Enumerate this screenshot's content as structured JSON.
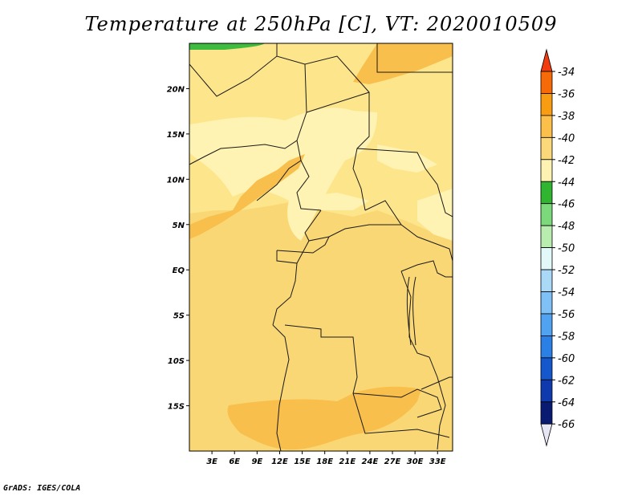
{
  "title": "Temperature at 250hPa [C], VT: 2020010509",
  "footer": "GrADS: IGES/COLA",
  "map": {
    "lon_range": [
      0,
      35
    ],
    "lat_range": [
      -20,
      25
    ],
    "lon_ticks": [
      {
        "value": 3,
        "label": "3E"
      },
      {
        "value": 6,
        "label": "6E"
      },
      {
        "value": 9,
        "label": "9E"
      },
      {
        "value": 12,
        "label": "12E"
      },
      {
        "value": 15,
        "label": "15E"
      },
      {
        "value": 18,
        "label": "18E"
      },
      {
        "value": 21,
        "label": "21E"
      },
      {
        "value": 24,
        "label": "24E"
      },
      {
        "value": 27,
        "label": "27E"
      },
      {
        "value": 30,
        "label": "30E"
      },
      {
        "value": 33,
        "label": "33E"
      }
    ],
    "lat_ticks": [
      {
        "value": 20,
        "label": "20N"
      },
      {
        "value": 15,
        "label": "15N"
      },
      {
        "value": 10,
        "label": "10N"
      },
      {
        "value": 5,
        "label": "5N"
      },
      {
        "value": 0,
        "label": "EQ"
      },
      {
        "value": -5,
        "label": "5S"
      },
      {
        "value": -10,
        "label": "10S"
      },
      {
        "value": -15,
        "label": "15S"
      }
    ]
  },
  "colors": {
    "base": "#fad775",
    "band_40_42": "#fde58b",
    "band_42_44": "#fef3b2",
    "band_38_40": "#f9bf4c",
    "band_44_46": "#3fbb3f",
    "border": "#1a1a1a"
  },
  "legend": {
    "labels": [
      "-34",
      "-36",
      "-38",
      "-40",
      "-42",
      "-44",
      "-46",
      "-48",
      "-50",
      "-52",
      "-54",
      "-56",
      "-58",
      "-60",
      "-62",
      "-64",
      "-66"
    ],
    "colors": [
      "#f03c10",
      "#f66a08",
      "#f89c12",
      "#fbbf4a",
      "#fbd87a",
      "#fdf2b2",
      "#2fb52f",
      "#7bd97b",
      "#b9edb0",
      "#e3f8f8",
      "#a9d9f6",
      "#7fc1f4",
      "#4fa3f1",
      "#2b80e6",
      "#1557cc",
      "#0f3aad",
      "#091a73",
      "#e6e6f5"
    ]
  }
}
